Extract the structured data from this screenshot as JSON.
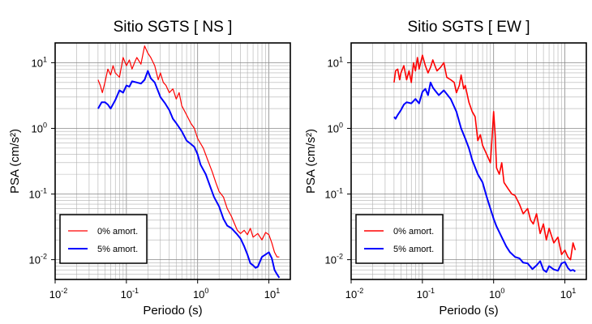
{
  "chart_data": [
    {
      "type": "line",
      "title": "Sitio SGTS [ NS ]",
      "xlabel": "Periodo (s)",
      "ylabel": "PSA (cm/s²)",
      "x_scale": "log",
      "y_scale": "log",
      "xlim": [
        0.01,
        20
      ],
      "ylim": [
        0.005,
        20
      ],
      "x_ticks": [
        {
          "v": 0.01,
          "base": "10",
          "exp": "-2"
        },
        {
          "v": 0.1,
          "base": "10",
          "exp": "-1"
        },
        {
          "v": 1,
          "base": "10",
          "exp": "0"
        },
        {
          "v": 10,
          "base": "10",
          "exp": "1"
        }
      ],
      "y_ticks": [
        {
          "v": 0.01,
          "base": "10",
          "exp": "-2"
        },
        {
          "v": 0.1,
          "base": "10",
          "exp": "-1"
        },
        {
          "v": 1,
          "base": "10",
          "exp": "0"
        },
        {
          "v": 10,
          "base": "10",
          "exp": "1"
        }
      ],
      "grid": true,
      "legend_position": "bottom-left",
      "series": [
        {
          "name": "0% amort.",
          "color": "#ff0000",
          "width": 1.2,
          "x": [
            0.04,
            0.043,
            0.046,
            0.05,
            0.055,
            0.06,
            0.065,
            0.07,
            0.08,
            0.09,
            0.1,
            0.11,
            0.12,
            0.13,
            0.14,
            0.16,
            0.18,
            0.2,
            0.22,
            0.25,
            0.28,
            0.3,
            0.33,
            0.36,
            0.4,
            0.45,
            0.5,
            0.55,
            0.6,
            0.7,
            0.8,
            0.9,
            1.0,
            1.2,
            1.4,
            1.6,
            1.8,
            2.0,
            2.3,
            2.6,
            3.0,
            3.3,
            3.6,
            4.0,
            4.5,
            5.0,
            5.5,
            6.0,
            7.0,
            8.0,
            9.0,
            10.0,
            11.0,
            12.0,
            13.0,
            14.0
          ],
          "y": [
            5.5,
            4.5,
            3.5,
            5.0,
            8.0,
            6.5,
            9.0,
            7.0,
            6.0,
            12.0,
            9.0,
            11.0,
            8.0,
            10.0,
            12.0,
            9.5,
            18.0,
            14.0,
            12.0,
            9.0,
            5.5,
            7.0,
            5.0,
            4.5,
            3.5,
            4.0,
            2.8,
            3.5,
            2.2,
            1.6,
            1.2,
            1.0,
            0.7,
            0.5,
            0.32,
            0.22,
            0.15,
            0.11,
            0.09,
            0.06,
            0.045,
            0.035,
            0.028,
            0.025,
            0.028,
            0.024,
            0.03,
            0.022,
            0.025,
            0.02,
            0.026,
            0.024,
            0.018,
            0.013,
            0.011,
            0.011
          ]
        },
        {
          "name": "5% amort.",
          "color": "#0000ff",
          "width": 2,
          "x": [
            0.04,
            0.045,
            0.05,
            0.055,
            0.06,
            0.07,
            0.08,
            0.09,
            0.1,
            0.11,
            0.12,
            0.14,
            0.16,
            0.18,
            0.2,
            0.22,
            0.25,
            0.3,
            0.35,
            0.4,
            0.45,
            0.5,
            0.6,
            0.7,
            0.8,
            0.9,
            1.0,
            1.1,
            1.3,
            1.5,
            1.7,
            2.0,
            2.3,
            2.6,
            3.0,
            3.5,
            4.0,
            4.5,
            5.0,
            5.5,
            6.0,
            6.5,
            7.0,
            8.0,
            9.0,
            10.0,
            11.0,
            12.0,
            13.0,
            14.0
          ],
          "y": [
            2.0,
            2.5,
            2.5,
            2.3,
            2.0,
            2.7,
            3.8,
            3.5,
            4.5,
            4.3,
            5.2,
            5.0,
            4.8,
            5.5,
            7.5,
            5.8,
            5.0,
            3.0,
            2.4,
            1.9,
            1.4,
            1.2,
            0.9,
            0.65,
            0.58,
            0.52,
            0.4,
            0.28,
            0.2,
            0.13,
            0.09,
            0.065,
            0.042,
            0.033,
            0.03,
            0.025,
            0.021,
            0.016,
            0.012,
            0.0088,
            0.0082,
            0.0075,
            0.0078,
            0.011,
            0.012,
            0.013,
            0.0105,
            0.007,
            0.006,
            0.0053
          ]
        }
      ]
    },
    {
      "type": "line",
      "title": "Sitio SGTS [ EW ]",
      "xlabel": "Periodo (s)",
      "ylabel": "PSA (cm/s²)",
      "x_scale": "log",
      "y_scale": "log",
      "xlim": [
        0.01,
        20
      ],
      "ylim": [
        0.005,
        20
      ],
      "x_ticks": [
        {
          "v": 0.01,
          "base": "10",
          "exp": "-2"
        },
        {
          "v": 0.1,
          "base": "10",
          "exp": "-1"
        },
        {
          "v": 1,
          "base": "10",
          "exp": "0"
        },
        {
          "v": 10,
          "base": "10",
          "exp": "1"
        }
      ],
      "y_ticks": [
        {
          "v": 0.01,
          "base": "10",
          "exp": "-2"
        },
        {
          "v": 0.1,
          "base": "10",
          "exp": "-1"
        },
        {
          "v": 1,
          "base": "10",
          "exp": "0"
        },
        {
          "v": 10,
          "base": "10",
          "exp": "1"
        }
      ],
      "grid": true,
      "legend_position": "bottom-left",
      "series": [
        {
          "name": "0% amort.",
          "color": "#ff0000",
          "width": 1.6,
          "x": [
            0.04,
            0.042,
            0.045,
            0.048,
            0.05,
            0.055,
            0.06,
            0.065,
            0.07,
            0.075,
            0.08,
            0.085,
            0.09,
            0.1,
            0.11,
            0.12,
            0.13,
            0.14,
            0.15,
            0.16,
            0.18,
            0.2,
            0.22,
            0.25,
            0.28,
            0.3,
            0.33,
            0.35,
            0.38,
            0.4,
            0.45,
            0.5,
            0.55,
            0.6,
            0.65,
            0.7,
            0.8,
            0.9,
            0.95,
            1.0,
            1.05,
            1.1,
            1.2,
            1.3,
            1.4,
            1.6,
            1.8,
            2.0,
            2.3,
            2.6,
            3.0,
            3.3,
            3.6,
            4.0,
            4.5,
            5.0,
            5.5,
            6.0,
            7.0,
            8.0,
            9.0,
            10.0,
            11.0,
            12.0,
            13.0,
            14.0
          ],
          "y": [
            5.0,
            7.5,
            8.0,
            5.5,
            7.0,
            9.0,
            5.5,
            7.5,
            5.0,
            10.0,
            7.5,
            12.0,
            8.0,
            13.0,
            9.0,
            7.0,
            8.5,
            11.0,
            9.0,
            7.5,
            8.5,
            10.0,
            6.0,
            5.5,
            5.0,
            3.5,
            4.5,
            6.5,
            4.0,
            4.5,
            2.5,
            1.8,
            1.5,
            0.65,
            0.8,
            0.55,
            0.4,
            0.3,
            0.7,
            1.8,
            0.8,
            0.25,
            0.2,
            0.3,
            0.15,
            0.12,
            0.1,
            0.095,
            0.07,
            0.05,
            0.06,
            0.04,
            0.035,
            0.05,
            0.025,
            0.035,
            0.02,
            0.03,
            0.018,
            0.022,
            0.012,
            0.014,
            0.011,
            0.01,
            0.018,
            0.014
          ]
        },
        {
          "name": "5% amort.",
          "color": "#0000ff",
          "width": 2,
          "x": [
            0.04,
            0.042,
            0.045,
            0.05,
            0.055,
            0.06,
            0.07,
            0.08,
            0.09,
            0.1,
            0.11,
            0.12,
            0.13,
            0.14,
            0.15,
            0.17,
            0.2,
            0.25,
            0.3,
            0.35,
            0.4,
            0.45,
            0.5,
            0.6,
            0.7,
            0.8,
            0.9,
            1.0,
            1.1,
            1.3,
            1.5,
            1.7,
            2.0,
            2.3,
            2.6,
            3.0,
            3.5,
            4.0,
            4.5,
            5.0,
            5.5,
            6.0,
            7.0,
            8.0,
            9.0,
            10.0,
            11.0,
            12.0,
            13.0,
            14.0
          ],
          "y": [
            1.5,
            1.4,
            1.6,
            1.9,
            2.3,
            2.5,
            2.4,
            2.8,
            2.4,
            3.6,
            4.0,
            3.2,
            5.0,
            4.2,
            3.8,
            3.2,
            3.8,
            2.8,
            1.8,
            1.0,
            0.7,
            0.5,
            0.33,
            0.2,
            0.15,
            0.09,
            0.06,
            0.042,
            0.032,
            0.022,
            0.016,
            0.013,
            0.011,
            0.0105,
            0.009,
            0.0088,
            0.0072,
            0.0082,
            0.0095,
            0.007,
            0.0065,
            0.008,
            0.0071,
            0.0068,
            0.0088,
            0.0092,
            0.0075,
            0.0068,
            0.007,
            0.0066
          ]
        }
      ]
    }
  ]
}
